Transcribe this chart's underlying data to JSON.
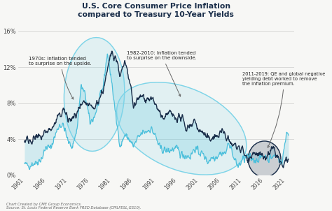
{
  "title_line1": "U.S. Core Consumer Price Inflation",
  "title_line2": "compared to Treasury 10-Year Yields",
  "background_color": "#f7f7f5",
  "plot_bg": "#f7f7f5",
  "grid_color": "#cccccc",
  "cpi_color": "#4bbfdb",
  "yield_color": "#1a2e4a",
  "ellipse_color": "#7dd4e8",
  "source_text": "Chart Created by CME Group Economics.\nSource: St. Louis Federal Reserve Bank FRED Database (CPILFESL,GS10).",
  "annotation1_text": "1970s: Inflation tended\nto surprise on the upside.",
  "annotation2_text": "1982-2010: Inflation tended\nto surprise on the downside.",
  "annotation3_text": "2011-2019: QE and global negative\nyielding debt worked to remove\nthe inflation premium.",
  "years": [
    1961,
    1962,
    1963,
    1964,
    1965,
    1966,
    1967,
    1968,
    1969,
    1970,
    1971,
    1972,
    1973,
    1974,
    1975,
    1976,
    1977,
    1978,
    1979,
    1980,
    1981,
    1982,
    1983,
    1984,
    1985,
    1986,
    1987,
    1988,
    1989,
    1990,
    1991,
    1992,
    1993,
    1994,
    1995,
    1996,
    1997,
    1998,
    1999,
    2000,
    2001,
    2002,
    2003,
    2004,
    2005,
    2006,
    2007,
    2008,
    2009,
    2010,
    2011,
    2012,
    2013,
    2014,
    2015,
    2016,
    2017,
    2018,
    2019,
    2020,
    2021
  ],
  "cpi": [
    1.2,
    1.1,
    1.3,
    1.5,
    1.9,
    3.2,
    3.0,
    4.4,
    5.6,
    5.5,
    3.7,
    3.2,
    5.0,
    10.0,
    8.8,
    5.8,
    6.5,
    8.0,
    9.8,
    13.6,
    10.4,
    6.2,
    3.2,
    4.5,
    4.0,
    3.2,
    4.1,
    4.7,
    4.9,
    5.2,
    4.4,
    3.0,
    2.8,
    2.7,
    2.9,
    2.9,
    2.3,
    2.2,
    2.1,
    3.0,
    2.6,
    2.3,
    1.5,
    2.0,
    2.1,
    2.5,
    2.4,
    3.7,
    1.8,
    1.0,
    1.7,
    2.1,
    1.8,
    1.7,
    1.9,
    2.2,
    1.8,
    2.1,
    2.2,
    1.2,
    4.7
  ],
  "treasury": [
    3.88,
    3.95,
    4.0,
    4.15,
    4.28,
    4.92,
    5.07,
    5.65,
    6.67,
    7.35,
    6.16,
    6.21,
    6.84,
    7.56,
    7.99,
    7.61,
    7.42,
    8.41,
    9.44,
    11.43,
    13.92,
    13.0,
    11.1,
    12.44,
    10.62,
    7.68,
    8.38,
    8.85,
    8.49,
    8.55,
    7.86,
    7.01,
    5.87,
    7.09,
    6.57,
    6.44,
    6.35,
    5.26,
    5.65,
    6.03,
    5.02,
    4.61,
    4.01,
    4.27,
    4.29,
    4.79,
    4.63,
    3.66,
    3.26,
    3.22,
    2.79,
    1.8,
    2.35,
    2.54,
    2.14,
    1.84,
    2.33,
    2.91,
    2.14,
    0.89,
    1.45
  ]
}
